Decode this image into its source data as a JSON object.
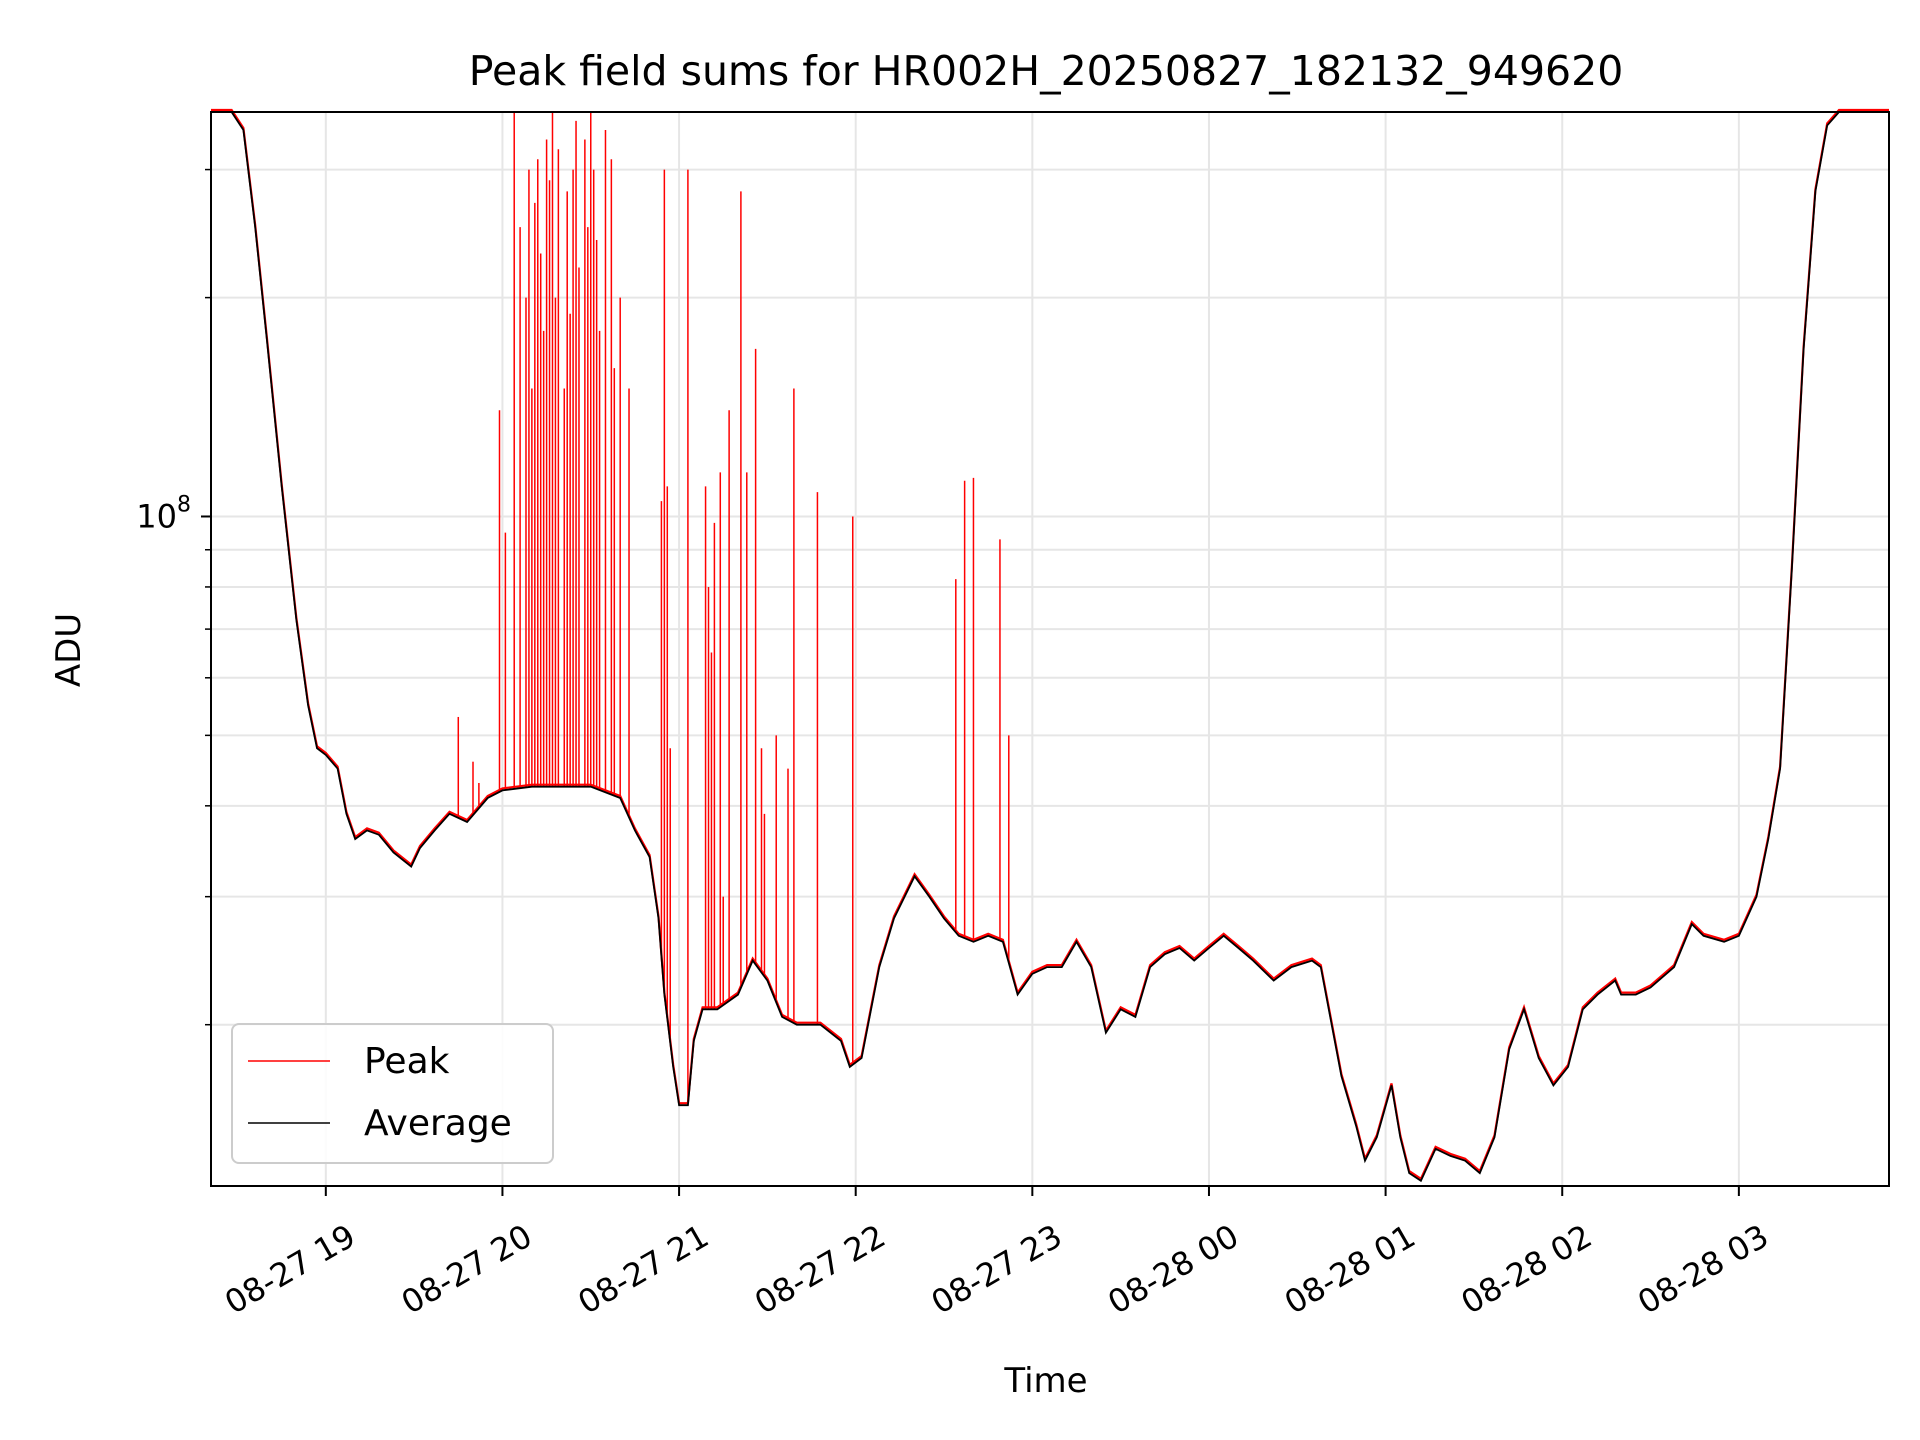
{
  "chart_data": {
    "type": "line",
    "title": "Peak field sums for HR002H_20250827_182132_949620",
    "xlabel": "Time",
    "ylabel": "ADU",
    "yscale": "log",
    "y_tick_labels": [
      {
        "value": 100000000,
        "base": "10",
        "exponent": "8"
      }
    ],
    "xlim": [
      "2025-08-27 18:21",
      "2025-08-28 03:51"
    ],
    "ylim": [
      12000000,
      360000000
    ],
    "x_ticks": [
      {
        "time": "2025-08-27 19:00",
        "label": "08-27 19"
      },
      {
        "time": "2025-08-27 20:00",
        "label": "08-27 20"
      },
      {
        "time": "2025-08-27 21:00",
        "label": "08-27 21"
      },
      {
        "time": "2025-08-27 22:00",
        "label": "08-27 22"
      },
      {
        "time": "2025-08-27 23:00",
        "label": "08-27 23"
      },
      {
        "time": "2025-08-28 00:00",
        "label": "08-28 00"
      },
      {
        "time": "2025-08-28 01:00",
        "label": "08-28 01"
      },
      {
        "time": "2025-08-28 02:00",
        "label": "08-28 02"
      },
      {
        "time": "2025-08-28 03:00",
        "label": "08-28 03"
      }
    ],
    "grid": true,
    "legend_position": "lower-left",
    "series": [
      {
        "name": "Average",
        "color": "#000000",
        "points": [
          [
            "2025-08-27 18:21",
            360000000
          ],
          [
            "2025-08-27 18:28",
            360000000
          ],
          [
            "2025-08-27 18:32",
            340000000
          ],
          [
            "2025-08-27 18:36",
            250000000
          ],
          [
            "2025-08-27 18:40",
            175000000
          ],
          [
            "2025-08-27 18:45",
            110000000
          ],
          [
            "2025-08-27 18:50",
            72000000
          ],
          [
            "2025-08-27 18:54",
            55000000
          ],
          [
            "2025-08-27 18:57",
            48000000
          ],
          [
            "2025-08-27 19:00",
            47000000
          ],
          [
            "2025-08-27 19:04",
            45000000
          ],
          [
            "2025-08-27 19:07",
            39000000
          ],
          [
            "2025-08-27 19:10",
            36000000
          ],
          [
            "2025-08-27 19:14",
            37000000
          ],
          [
            "2025-08-27 19:18",
            36500000
          ],
          [
            "2025-08-27 19:23",
            34500000
          ],
          [
            "2025-08-27 19:29",
            33000000
          ],
          [
            "2025-08-27 19:32",
            35000000
          ],
          [
            "2025-08-27 19:37",
            37000000
          ],
          [
            "2025-08-27 19:42",
            39000000
          ],
          [
            "2025-08-27 19:48",
            38000000
          ],
          [
            "2025-08-27 19:55",
            41000000
          ],
          [
            "2025-08-27 20:00",
            42000000
          ],
          [
            "2025-08-27 20:10",
            42500000
          ],
          [
            "2025-08-27 20:20",
            42500000
          ],
          [
            "2025-08-27 20:30",
            42500000
          ],
          [
            "2025-08-27 20:40",
            41000000
          ],
          [
            "2025-08-27 20:45",
            37000000
          ],
          [
            "2025-08-27 20:50",
            34000000
          ],
          [
            "2025-08-27 20:53",
            28000000
          ],
          [
            "2025-08-27 20:55",
            22000000
          ],
          [
            "2025-08-27 20:58",
            17500000
          ],
          [
            "2025-08-27 21:00",
            15500000
          ],
          [
            "2025-08-27 21:03",
            15500000
          ],
          [
            "2025-08-27 21:05",
            19000000
          ],
          [
            "2025-08-27 21:08",
            21000000
          ],
          [
            "2025-08-27 21:13",
            21000000
          ],
          [
            "2025-08-27 21:20",
            22000000
          ],
          [
            "2025-08-27 21:25",
            24500000
          ],
          [
            "2025-08-27 21:30",
            23000000
          ],
          [
            "2025-08-27 21:35",
            20500000
          ],
          [
            "2025-08-27 21:40",
            20000000
          ],
          [
            "2025-08-27 21:48",
            20000000
          ],
          [
            "2025-08-27 21:55",
            19000000
          ],
          [
            "2025-08-27 21:58",
            17500000
          ],
          [
            "2025-08-27 22:02",
            18000000
          ],
          [
            "2025-08-27 22:08",
            24000000
          ],
          [
            "2025-08-27 22:13",
            28000000
          ],
          [
            "2025-08-27 22:20",
            32000000
          ],
          [
            "2025-08-27 22:25",
            30000000
          ],
          [
            "2025-08-27 22:30",
            28000000
          ],
          [
            "2025-08-27 22:35",
            26500000
          ],
          [
            "2025-08-27 22:40",
            26000000
          ],
          [
            "2025-08-27 22:45",
            26500000
          ],
          [
            "2025-08-27 22:50",
            26000000
          ],
          [
            "2025-08-27 22:55",
            22000000
          ],
          [
            "2025-08-27 23:00",
            23500000
          ],
          [
            "2025-08-27 23:05",
            24000000
          ],
          [
            "2025-08-27 23:10",
            24000000
          ],
          [
            "2025-08-27 23:15",
            26000000
          ],
          [
            "2025-08-27 23:20",
            24000000
          ],
          [
            "2025-08-27 23:25",
            19500000
          ],
          [
            "2025-08-27 23:30",
            21000000
          ],
          [
            "2025-08-27 23:35",
            20500000
          ],
          [
            "2025-08-27 23:40",
            24000000
          ],
          [
            "2025-08-27 23:45",
            25000000
          ],
          [
            "2025-08-27 23:50",
            25500000
          ],
          [
            "2025-08-27 23:55",
            24500000
          ],
          [
            "2025-08-28 00:00",
            25500000
          ],
          [
            "2025-08-28 00:05",
            26500000
          ],
          [
            "2025-08-28 00:10",
            25500000
          ],
          [
            "2025-08-28 00:15",
            24500000
          ],
          [
            "2025-08-28 00:22",
            23000000
          ],
          [
            "2025-08-28 00:28",
            24000000
          ],
          [
            "2025-08-28 00:35",
            24500000
          ],
          [
            "2025-08-28 00:38",
            24000000
          ],
          [
            "2025-08-28 00:45",
            17000000
          ],
          [
            "2025-08-28 00:50",
            14500000
          ],
          [
            "2025-08-28 00:53",
            13000000
          ],
          [
            "2025-08-28 00:57",
            14000000
          ],
          [
            "2025-08-28 01:02",
            16500000
          ],
          [
            "2025-08-28 01:05",
            14000000
          ],
          [
            "2025-08-28 01:08",
            12500000
          ],
          [
            "2025-08-28 01:12",
            12200000
          ],
          [
            "2025-08-28 01:17",
            13500000
          ],
          [
            "2025-08-28 01:22",
            13200000
          ],
          [
            "2025-08-28 01:27",
            13000000
          ],
          [
            "2025-08-28 01:32",
            12500000
          ],
          [
            "2025-08-28 01:37",
            14000000
          ],
          [
            "2025-08-28 01:42",
            18500000
          ],
          [
            "2025-08-28 01:47",
            21000000
          ],
          [
            "2025-08-28 01:52",
            18000000
          ],
          [
            "2025-08-28 01:57",
            16500000
          ],
          [
            "2025-08-28 02:02",
            17500000
          ],
          [
            "2025-08-28 02:07",
            21000000
          ],
          [
            "2025-08-28 02:12",
            22000000
          ],
          [
            "2025-08-28 02:18",
            23000000
          ],
          [
            "2025-08-28 02:20",
            22000000
          ],
          [
            "2025-08-28 02:25",
            22000000
          ],
          [
            "2025-08-28 02:30",
            22500000
          ],
          [
            "2025-08-28 02:38",
            24000000
          ],
          [
            "2025-08-28 02:44",
            27500000
          ],
          [
            "2025-08-28 02:48",
            26500000
          ],
          [
            "2025-08-28 02:55",
            26000000
          ],
          [
            "2025-08-28 03:00",
            26500000
          ],
          [
            "2025-08-28 03:06",
            30000000
          ],
          [
            "2025-08-28 03:10",
            36000000
          ],
          [
            "2025-08-28 03:14",
            45000000
          ],
          [
            "2025-08-28 03:18",
            85000000
          ],
          [
            "2025-08-28 03:22",
            170000000
          ],
          [
            "2025-08-28 03:26",
            280000000
          ],
          [
            "2025-08-28 03:30",
            345000000
          ],
          [
            "2025-08-28 03:34",
            360000000
          ],
          [
            "2025-08-28 03:51",
            360000000
          ]
        ]
      },
      {
        "name": "Peak",
        "color": "#ff0000",
        "spikes": [
          [
            "2025-08-27 19:45",
            53000000
          ],
          [
            "2025-08-27 19:50",
            46000000
          ],
          [
            "2025-08-27 19:52",
            43000000
          ],
          [
            "2025-08-27 19:59",
            140000000
          ],
          [
            "2025-08-27 20:01",
            95000000
          ],
          [
            "2025-08-27 20:04",
            360000000
          ],
          [
            "2025-08-27 20:06",
            250000000
          ],
          [
            "2025-08-27 20:08",
            200000000
          ],
          [
            "2025-08-27 20:09",
            300000000
          ],
          [
            "2025-08-27 20:10",
            150000000
          ],
          [
            "2025-08-27 20:11",
            270000000
          ],
          [
            "2025-08-27 20:12",
            310000000
          ],
          [
            "2025-08-27 20:13",
            230000000
          ],
          [
            "2025-08-27 20:14",
            180000000
          ],
          [
            "2025-08-27 20:15",
            330000000
          ],
          [
            "2025-08-27 20:16",
            290000000
          ],
          [
            "2025-08-27 20:17",
            360000000
          ],
          [
            "2025-08-27 20:18",
            200000000
          ],
          [
            "2025-08-27 20:19",
            320000000
          ],
          [
            "2025-08-27 20:21",
            150000000
          ],
          [
            "2025-08-27 20:22",
            280000000
          ],
          [
            "2025-08-27 20:23",
            190000000
          ],
          [
            "2025-08-27 20:24",
            300000000
          ],
          [
            "2025-08-27 20:25",
            350000000
          ],
          [
            "2025-08-27 20:26",
            220000000
          ],
          [
            "2025-08-27 20:28",
            330000000
          ],
          [
            "2025-08-27 20:29",
            250000000
          ],
          [
            "2025-08-27 20:30",
            360000000
          ],
          [
            "2025-08-27 20:31",
            300000000
          ],
          [
            "2025-08-27 20:32",
            240000000
          ],
          [
            "2025-08-27 20:33",
            180000000
          ],
          [
            "2025-08-27 20:35",
            340000000
          ],
          [
            "2025-08-27 20:37",
            310000000
          ],
          [
            "2025-08-27 20:38",
            160000000
          ],
          [
            "2025-08-27 20:40",
            200000000
          ],
          [
            "2025-08-27 20:43",
            150000000
          ],
          [
            "2025-08-27 20:54",
            105000000
          ],
          [
            "2025-08-27 20:55",
            300000000
          ],
          [
            "2025-08-27 20:56",
            110000000
          ],
          [
            "2025-08-27 20:57",
            48000000
          ],
          [
            "2025-08-27 21:03",
            300000000
          ],
          [
            "2025-08-27 21:09",
            110000000
          ],
          [
            "2025-08-27 21:10",
            80000000
          ],
          [
            "2025-08-27 21:11",
            65000000
          ],
          [
            "2025-08-27 21:12",
            98000000
          ],
          [
            "2025-08-27 21:14",
            115000000
          ],
          [
            "2025-08-27 21:15",
            30000000
          ],
          [
            "2025-08-27 21:17",
            140000000
          ],
          [
            "2025-08-27 21:21",
            280000000
          ],
          [
            "2025-08-27 21:23",
            115000000
          ],
          [
            "2025-08-27 21:26",
            170000000
          ],
          [
            "2025-08-27 21:28",
            48000000
          ],
          [
            "2025-08-27 21:29",
            39000000
          ],
          [
            "2025-08-27 21:33",
            50000000
          ],
          [
            "2025-08-27 21:37",
            45000000
          ],
          [
            "2025-08-27 21:39",
            150000000
          ],
          [
            "2025-08-27 21:47",
            108000000
          ],
          [
            "2025-08-27 21:59",
            100000000
          ],
          [
            "2025-08-27 22:34",
            82000000
          ],
          [
            "2025-08-27 22:37",
            112000000
          ],
          [
            "2025-08-27 22:40",
            113000000
          ],
          [
            "2025-08-27 22:49",
            93000000
          ],
          [
            "2025-08-27 22:52",
            50000000
          ]
        ]
      }
    ]
  }
}
